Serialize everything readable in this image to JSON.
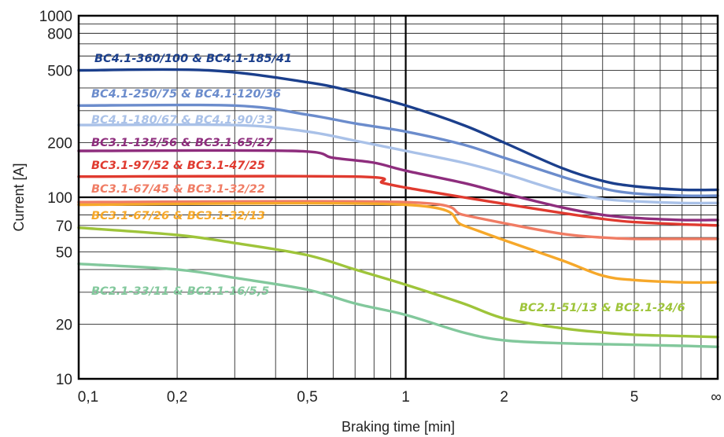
{
  "chart_data": {
    "type": "line",
    "xlabel": "Braking time [min]",
    "ylabel": "Current [A]",
    "x_scale": "log",
    "y_scale": "log",
    "xlim": [
      0.1,
      "∞"
    ],
    "ylim": [
      10,
      1000
    ],
    "grid": true,
    "x_ticks": [
      {
        "value": 0.1,
        "label": "0,1"
      },
      {
        "value": 0.2,
        "label": "0,2"
      },
      {
        "value": 0.5,
        "label": "0,5"
      },
      {
        "value": 1,
        "label": "1"
      },
      {
        "value": 2,
        "label": "2"
      },
      {
        "value": 5,
        "label": "5"
      },
      {
        "value": "∞",
        "label": "∞"
      }
    ],
    "y_ticks": [
      {
        "value": 10,
        "label": "10"
      },
      {
        "value": 20,
        "label": "20"
      },
      {
        "value": 50,
        "label": "50"
      },
      {
        "value": 70,
        "label": "70"
      },
      {
        "value": 100,
        "label": "100"
      },
      {
        "value": 200,
        "label": "200"
      },
      {
        "value": 500,
        "label": "500"
      },
      {
        "value": 800,
        "label": "800"
      },
      {
        "value": 1000,
        "label": "1000"
      }
    ],
    "series": [
      {
        "name": "BC4.1-360/100 & BC4.1-185/41",
        "color": "#1b3f8c",
        "points": [
          [
            0.1,
            500
          ],
          [
            0.25,
            500
          ],
          [
            0.5,
            430
          ],
          [
            0.7,
            380
          ],
          [
            1,
            320
          ],
          [
            1.5,
            250
          ],
          [
            2,
            200
          ],
          [
            3,
            145
          ],
          [
            4,
            123
          ],
          [
            5,
            115
          ],
          [
            7,
            110
          ],
          [
            "∞",
            110
          ]
        ]
      },
      {
        "name": "BC4.1-250/75 & BC4.1-120/36",
        "color": "#6b8ccc",
        "points": [
          [
            0.1,
            320
          ],
          [
            0.3,
            320
          ],
          [
            0.5,
            285
          ],
          [
            0.7,
            255
          ],
          [
            1,
            230
          ],
          [
            1.5,
            195
          ],
          [
            2,
            165
          ],
          [
            3,
            130
          ],
          [
            4,
            112
          ],
          [
            5,
            105
          ],
          [
            7,
            102
          ],
          [
            "∞",
            102
          ]
        ]
      },
      {
        "name": "BC4.1-180/67 & BC4.1-90/33",
        "color": "#a9c1e8",
        "points": [
          [
            0.1,
            250
          ],
          [
            0.3,
            250
          ],
          [
            0.5,
            230
          ],
          [
            0.7,
            205
          ],
          [
            1,
            180
          ],
          [
            1.5,
            155
          ],
          [
            2,
            135
          ],
          [
            3,
            108
          ],
          [
            4,
            98
          ],
          [
            5,
            95
          ],
          [
            7,
            93
          ],
          [
            "∞",
            93
          ]
        ]
      },
      {
        "name": "BC3.1-135/56 & BC3.1-65/27",
        "color": "#8e2d7d",
        "points": [
          [
            0.1,
            180
          ],
          [
            0.45,
            180
          ],
          [
            0.6,
            165
          ],
          [
            0.8,
            155
          ],
          [
            1,
            140
          ],
          [
            1.5,
            120
          ],
          [
            2,
            105
          ],
          [
            3,
            88
          ],
          [
            4,
            80
          ],
          [
            5,
            77
          ],
          [
            7,
            75
          ],
          [
            "∞",
            75
          ]
        ]
      },
      {
        "name": "BC3.1-97/52 & BC3.1-47/25",
        "color": "#e03a2f",
        "points": [
          [
            0.1,
            130
          ],
          [
            0.7,
            130
          ],
          [
            0.85,
            120
          ],
          [
            1,
            113
          ],
          [
            1.5,
            100
          ],
          [
            2,
            92
          ],
          [
            3,
            82
          ],
          [
            4,
            76
          ],
          [
            5,
            73
          ],
          [
            7,
            71
          ],
          [
            "∞",
            70
          ]
        ]
      },
      {
        "name": "BC3.1-67/45 & BC3.1-32/22",
        "color": "#f07c64",
        "points": [
          [
            0.1,
            94
          ],
          [
            1,
            94
          ],
          [
            1.5,
            80
          ],
          [
            2,
            72
          ],
          [
            3,
            63
          ],
          [
            4,
            60
          ],
          [
            5,
            59
          ],
          [
            7,
            59
          ],
          [
            "∞",
            59
          ]
        ]
      },
      {
        "name": "BC3.1-67/26 & BC3.1-32/13",
        "color": "#f6a82a",
        "points": [
          [
            0.1,
            91
          ],
          [
            1,
            91
          ],
          [
            1.5,
            70
          ],
          [
            2,
            58
          ],
          [
            3,
            45
          ],
          [
            4,
            37
          ],
          [
            5,
            35
          ],
          [
            7,
            34
          ],
          [
            "∞",
            34
          ]
        ]
      },
      {
        "name": "BC2.1-51/13 & BC2.1-24/6",
        "color": "#9ec43a",
        "points": [
          [
            0.1,
            68
          ],
          [
            0.2,
            62
          ],
          [
            0.3,
            56
          ],
          [
            0.5,
            48
          ],
          [
            0.7,
            40
          ],
          [
            1,
            33
          ],
          [
            1.5,
            26
          ],
          [
            2,
            21.5
          ],
          [
            3,
            19
          ],
          [
            4,
            18
          ],
          [
            5,
            17.5
          ],
          [
            7,
            17.2
          ],
          [
            "∞",
            17
          ]
        ]
      },
      {
        "name": "BC2.1-33/11 & BC2.1-16/5,5",
        "color": "#82c89c",
        "points": [
          [
            0.1,
            43
          ],
          [
            0.2,
            40
          ],
          [
            0.3,
            36
          ],
          [
            0.5,
            31
          ],
          [
            0.7,
            26
          ],
          [
            1,
            22.5
          ],
          [
            1.5,
            18
          ],
          [
            2,
            16.3
          ],
          [
            3,
            15.7
          ],
          [
            5,
            15.4
          ],
          [
            7,
            15.2
          ],
          [
            "∞",
            15
          ]
        ]
      }
    ]
  }
}
